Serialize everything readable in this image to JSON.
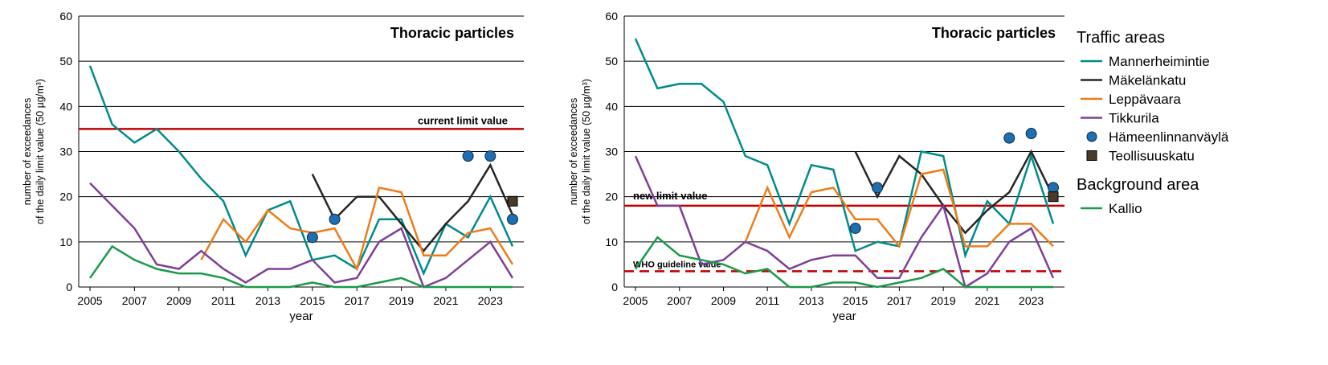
{
  "chart_data": [
    {
      "type": "line",
      "title": "Thoracic particles",
      "xlabel": "year",
      "ylabel_line1": "number of exceedances",
      "ylabel_line2": "of the daily limit value (50 µg/m³)",
      "xlim": [
        2005,
        2024
      ],
      "ylim": [
        0,
        60
      ],
      "xticks": [
        "2005",
        "2007",
        "2009",
        "2011",
        "2013",
        "2015",
        "2017",
        "2019",
        "2021",
        "2023"
      ],
      "yticks": [
        "0",
        "10",
        "20",
        "30",
        "40",
        "50",
        "60"
      ],
      "grid": true,
      "reference_lines": [
        {
          "label": "current limit value",
          "value": 35,
          "color": "#c00000",
          "style": "solid"
        }
      ],
      "series": [
        {
          "name": "Mannerheimintie",
          "color": "#008b8b",
          "style": "line",
          "points": [
            [
              2005,
              49
            ],
            [
              2006,
              36
            ],
            [
              2007,
              32
            ],
            [
              2008,
              35
            ],
            [
              2009,
              30
            ],
            [
              2010,
              24
            ],
            [
              2011,
              19
            ],
            [
              2012,
              7
            ],
            [
              2013,
              17
            ],
            [
              2014,
              19
            ],
            [
              2015,
              6
            ],
            [
              2016,
              7
            ],
            [
              2017,
              4
            ],
            [
              2018,
              15
            ],
            [
              2019,
              15
            ],
            [
              2020,
              3
            ],
            [
              2021,
              14
            ],
            [
              2022,
              11
            ],
            [
              2023,
              20
            ],
            [
              2024,
              9
            ]
          ]
        },
        {
          "name": "Mäkelänkatu",
          "color": "#262626",
          "style": "line",
          "points": [
            [
              2015,
              25
            ],
            [
              2016,
              15
            ],
            [
              2017,
              20
            ],
            [
              2018,
              20
            ],
            [
              2019,
              14
            ],
            [
              2020,
              8
            ],
            [
              2021,
              14
            ],
            [
              2022,
              19
            ],
            [
              2023,
              27
            ],
            [
              2024,
              16
            ]
          ]
        },
        {
          "name": "Leppävaara",
          "color": "#ed7d1a",
          "style": "line",
          "points": [
            [
              2010,
              6
            ],
            [
              2011,
              15
            ],
            [
              2012,
              10
            ],
            [
              2013,
              17
            ],
            [
              2014,
              13
            ],
            [
              2015,
              12
            ],
            [
              2016,
              13
            ],
            [
              2017,
              4
            ],
            [
              2018,
              22
            ],
            [
              2019,
              21
            ],
            [
              2020,
              7
            ],
            [
              2021,
              7
            ],
            [
              2022,
              12
            ],
            [
              2023,
              13
            ],
            [
              2024,
              5
            ]
          ]
        },
        {
          "name": "Tikkurila",
          "color": "#7e3f98",
          "style": "line",
          "points": [
            [
              2005,
              23
            ],
            [
              2006,
              18
            ],
            [
              2007,
              13
            ],
            [
              2008,
              5
            ],
            [
              2009,
              4
            ],
            [
              2010,
              8
            ],
            [
              2011,
              4
            ],
            [
              2012,
              1
            ],
            [
              2013,
              4
            ],
            [
              2014,
              4
            ],
            [
              2015,
              6
            ],
            [
              2016,
              1
            ],
            [
              2017,
              2
            ],
            [
              2018,
              10
            ],
            [
              2019,
              13
            ],
            [
              2020,
              0
            ],
            [
              2021,
              2
            ],
            [
              2022,
              6
            ],
            [
              2023,
              10
            ],
            [
              2024,
              2
            ]
          ]
        },
        {
          "name": "Hämeenlinnanväylä",
          "color": "#1f6fb0",
          "style": "marker-circle",
          "points": [
            [
              2015,
              11
            ],
            [
              2016,
              15
            ],
            [
              2022,
              29
            ],
            [
              2023,
              29
            ],
            [
              2024,
              15
            ]
          ]
        },
        {
          "name": "Teollisuuskatu",
          "color": "#4a3a2a",
          "style": "marker-square",
          "points": [
            [
              2024,
              19
            ]
          ]
        },
        {
          "name": "Kallio",
          "color": "#1a9a4a",
          "style": "line",
          "points": [
            [
              2005,
              2
            ],
            [
              2006,
              9
            ],
            [
              2007,
              6
            ],
            [
              2008,
              4
            ],
            [
              2009,
              3
            ],
            [
              2010,
              3
            ],
            [
              2011,
              2
            ],
            [
              2012,
              0
            ],
            [
              2013,
              0
            ],
            [
              2014,
              0
            ],
            [
              2015,
              1
            ],
            [
              2016,
              0
            ],
            [
              2017,
              0
            ],
            [
              2018,
              1
            ],
            [
              2019,
              2
            ],
            [
              2020,
              0
            ],
            [
              2021,
              0
            ],
            [
              2022,
              0
            ],
            [
              2023,
              0
            ],
            [
              2024,
              0
            ]
          ]
        }
      ]
    },
    {
      "type": "line",
      "title": "Thoracic particles",
      "xlabel": "year",
      "ylabel_line1": "number of exceedances",
      "ylabel_line2": "of the daily limit value (50 µg/m³)",
      "xlim": [
        2005,
        2024
      ],
      "ylim": [
        0,
        60
      ],
      "xticks": [
        "2005",
        "2007",
        "2009",
        "2011",
        "2013",
        "2015",
        "2017",
        "2019",
        "2021",
        "2023"
      ],
      "yticks": [
        "0",
        "10",
        "20",
        "30",
        "40",
        "50",
        "60"
      ],
      "grid": true,
      "reference_lines": [
        {
          "label": "new limit value",
          "value": 18,
          "color": "#c00000",
          "style": "solid"
        },
        {
          "label": "WHO guideline value",
          "value": 3.5,
          "color": "#c00000",
          "style": "dashed"
        }
      ],
      "series": [
        {
          "name": "Mannerheimintie",
          "color": "#008b8b",
          "style": "line",
          "points": [
            [
              2005,
              55
            ],
            [
              2006,
              44
            ],
            [
              2007,
              45
            ],
            [
              2008,
              45
            ],
            [
              2009,
              41
            ],
            [
              2010,
              29
            ],
            [
              2011,
              27
            ],
            [
              2012,
              14
            ],
            [
              2013,
              27
            ],
            [
              2014,
              26
            ],
            [
              2015,
              8
            ],
            [
              2016,
              10
            ],
            [
              2017,
              9
            ],
            [
              2018,
              30
            ],
            [
              2019,
              29
            ],
            [
              2020,
              7
            ],
            [
              2021,
              19
            ],
            [
              2022,
              14
            ],
            [
              2023,
              29
            ],
            [
              2024,
              14
            ]
          ]
        },
        {
          "name": "Mäkelänkatu",
          "color": "#262626",
          "style": "line",
          "points": [
            [
              2015,
              30
            ],
            [
              2016,
              20
            ],
            [
              2017,
              29
            ],
            [
              2018,
              25
            ],
            [
              2019,
              18
            ],
            [
              2020,
              12
            ],
            [
              2021,
              17
            ],
            [
              2022,
              21
            ],
            [
              2023,
              30
            ],
            [
              2024,
              20
            ]
          ]
        },
        {
          "name": "Leppävaara",
          "color": "#ed7d1a",
          "style": "line",
          "points": [
            [
              2010,
              10
            ],
            [
              2011,
              22
            ],
            [
              2012,
              11
            ],
            [
              2013,
              21
            ],
            [
              2014,
              22
            ],
            [
              2015,
              15
            ],
            [
              2016,
              15
            ],
            [
              2017,
              9
            ],
            [
              2018,
              25
            ],
            [
              2019,
              26
            ],
            [
              2020,
              9
            ],
            [
              2021,
              9
            ],
            [
              2022,
              14
            ],
            [
              2023,
              14
            ],
            [
              2024,
              9
            ]
          ]
        },
        {
          "name": "Tikkurila",
          "color": "#7e3f98",
          "style": "line",
          "points": [
            [
              2005,
              29
            ],
            [
              2006,
              18
            ],
            [
              2007,
              18
            ],
            [
              2008,
              5
            ],
            [
              2009,
              6
            ],
            [
              2010,
              10
            ],
            [
              2011,
              8
            ],
            [
              2012,
              4
            ],
            [
              2013,
              6
            ],
            [
              2014,
              7
            ],
            [
              2015,
              7
            ],
            [
              2016,
              2
            ],
            [
              2017,
              2
            ],
            [
              2018,
              11
            ],
            [
              2019,
              18
            ],
            [
              2020,
              0
            ],
            [
              2021,
              3
            ],
            [
              2022,
              10
            ],
            [
              2023,
              13
            ],
            [
              2024,
              2
            ]
          ]
        },
        {
          "name": "Hämeenlinnanväylä",
          "color": "#1f6fb0",
          "style": "marker-circle",
          "points": [
            [
              2015,
              13
            ],
            [
              2016,
              22
            ],
            [
              2022,
              33
            ],
            [
              2023,
              34
            ],
            [
              2024,
              22
            ]
          ]
        },
        {
          "name": "Teollisuuskatu",
          "color": "#4a3a2a",
          "style": "marker-square",
          "points": [
            [
              2024,
              20
            ]
          ]
        },
        {
          "name": "Kallio",
          "color": "#1a9a4a",
          "style": "line",
          "points": [
            [
              2005,
              4
            ],
            [
              2006,
              11
            ],
            [
              2007,
              7
            ],
            [
              2008,
              6
            ],
            [
              2009,
              5
            ],
            [
              2010,
              3
            ],
            [
              2011,
              4
            ],
            [
              2012,
              0
            ],
            [
              2013,
              0
            ],
            [
              2014,
              1
            ],
            [
              2015,
              1
            ],
            [
              2016,
              0
            ],
            [
              2017,
              1
            ],
            [
              2018,
              2
            ],
            [
              2019,
              4
            ],
            [
              2020,
              0
            ],
            [
              2021,
              0
            ],
            [
              2022,
              0
            ],
            [
              2023,
              0
            ],
            [
              2024,
              0
            ]
          ]
        }
      ]
    }
  ],
  "legend": {
    "groups": [
      {
        "title": "Traffic areas",
        "items": [
          "Mannerheimintie",
          "Mäkelänkatu",
          "Leppävaara",
          "Tikkurila",
          "Hämeenlinnanväylä",
          "Teollisuuskatu"
        ]
      },
      {
        "title": "Background area",
        "items": [
          "Kallio"
        ]
      }
    ]
  }
}
